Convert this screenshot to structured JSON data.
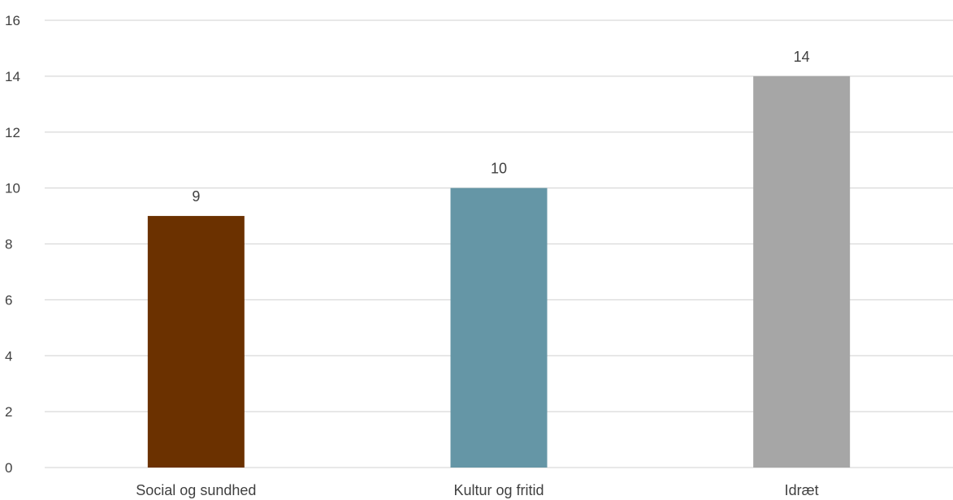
{
  "chart_data": {
    "type": "bar",
    "title": "",
    "xlabel": "",
    "ylabel": "",
    "categories": [
      "Social og sundhed",
      "Kultur og fritid",
      "Idræt"
    ],
    "values": [
      9,
      10,
      14
    ],
    "data_labels": [
      "9",
      "10",
      "14"
    ],
    "colors": [
      "#6b3100",
      "#6596a6",
      "#a6a6a6"
    ],
    "ylim": [
      0,
      16
    ],
    "yticks": [
      0,
      2,
      4,
      6,
      8,
      10,
      12,
      14,
      16
    ],
    "ytick_labels": [
      "0",
      "2",
      "4",
      "6",
      "8",
      "10",
      "12",
      "14",
      "16"
    ],
    "grid": true,
    "legend": "none"
  }
}
